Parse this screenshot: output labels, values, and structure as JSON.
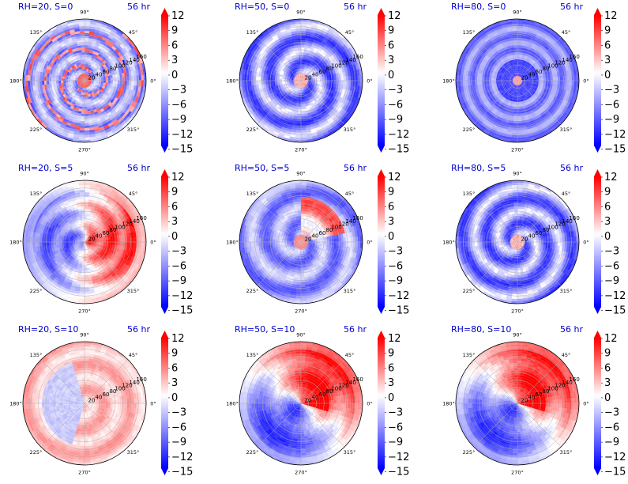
{
  "chart_data": {
    "type": "polar-contour",
    "time_label": "56 hr",
    "angle_ticks": [
      "90°",
      "45°",
      "0°",
      "315°",
      "270°",
      "225°",
      "180°",
      "135°"
    ],
    "radial_ticks": [
      "20",
      "40",
      "60",
      "80",
      "100",
      "120",
      "140",
      "160"
    ],
    "colorbar_ticks": [
      "12",
      "9",
      "6",
      "3",
      "0",
      "−3",
      "−6",
      "−9",
      "−12",
      "−15"
    ],
    "colorbar_range": [
      -15,
      12
    ],
    "colormap": {
      "min": "#0000ff",
      "mid": "#ffffff",
      "max": "#ff0000"
    },
    "grid": true,
    "panels": [
      {
        "title": "RH=20, S=0",
        "time": "56 hr",
        "rh": 20,
        "shear": 0,
        "pattern": "bands_blue"
      },
      {
        "title": "RH=50, S=0",
        "time": "56 hr",
        "rh": 50,
        "shear": 0,
        "pattern": "spiral_blue"
      },
      {
        "title": "RH=80, S=0",
        "time": "56 hr",
        "rh": 80,
        "shear": 0,
        "pattern": "rings_blue"
      },
      {
        "title": "RH=20, S=5",
        "time": "56 hr",
        "rh": 20,
        "shear": 5,
        "pattern": "west_red_east_blue"
      },
      {
        "title": "RH=50, S=5",
        "time": "56 hr",
        "rh": 50,
        "shear": 5,
        "pattern": "south_red_spiral"
      },
      {
        "title": "RH=80, S=5",
        "time": "56 hr",
        "rh": 80,
        "shear": 5,
        "pattern": "spiral_blue"
      },
      {
        "title": "RH=20, S=10",
        "time": "56 hr",
        "rh": 20,
        "shear": 10,
        "pattern": "pale_red"
      },
      {
        "title": "RH=50, S=10",
        "time": "56 hr",
        "rh": 50,
        "shear": 10,
        "pattern": "split_red_blue"
      },
      {
        "title": "RH=80, S=10",
        "time": "56 hr",
        "rh": 80,
        "shear": 10,
        "pattern": "split_red_blue"
      }
    ]
  }
}
